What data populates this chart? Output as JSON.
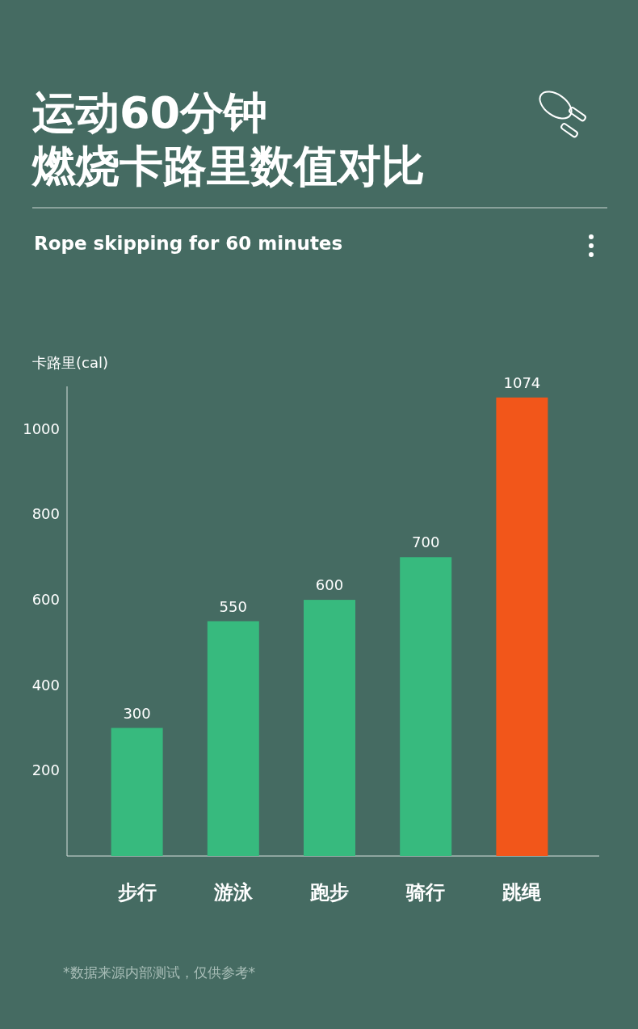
{
  "chart_data": {
    "type": "bar",
    "title": "运动60分钟",
    "subtitle": "燃烧卡路里数值对比",
    "ylabel": "卡路里(cal)",
    "categories": [
      "步行",
      "游泳",
      "跑步",
      "骑行",
      "跳绳"
    ],
    "values": [
      300,
      550,
      600,
      700,
      1074
    ],
    "colors": [
      "#37ba7e",
      "#37ba7e",
      "#37ba7e",
      "#37ba7e",
      "#f2561a"
    ],
    "ylim": [
      0,
      1100
    ],
    "yticks": [
      200,
      400,
      600,
      800,
      1000
    ],
    "grid": false,
    "data_labels": true,
    "annotations": [
      "Rope skipping for 60 minutes",
      "*数据来源内部测试，仅供参考*"
    ]
  }
}
